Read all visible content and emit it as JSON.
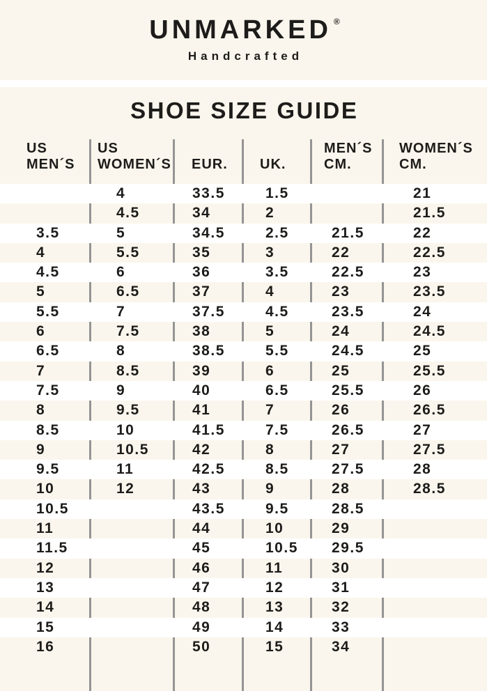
{
  "brand": {
    "name": "UNMARKED",
    "registered_mark": "®",
    "tagline": "Handcrafted"
  },
  "page_title": "SHOE SIZE GUIDE",
  "table": {
    "column_ids": [
      "us-mens",
      "us-womens",
      "eur",
      "uk",
      "mens-cm",
      "womens-cm"
    ],
    "headers": [
      {
        "line1": "US",
        "line2": "MEN´S"
      },
      {
        "line1": "US",
        "line2": "WOMEN´S"
      },
      {
        "line1": "",
        "line2": "EUR."
      },
      {
        "line1": "",
        "line2": "UK."
      },
      {
        "line1": "MEN´S",
        "line2": "CM."
      },
      {
        "line1": "WOMEN´S",
        "line2": "CM."
      }
    ],
    "rows": [
      [
        "",
        "4",
        "33.5",
        "1.5",
        "",
        "21"
      ],
      [
        "",
        "4.5",
        "34",
        "2",
        "",
        "21.5"
      ],
      [
        "3.5",
        "5",
        "34.5",
        "2.5",
        "21.5",
        "22"
      ],
      [
        "4",
        "5.5",
        "35",
        "3",
        "22",
        "22.5"
      ],
      [
        "4.5",
        "6",
        "36",
        "3.5",
        "22.5",
        "23"
      ],
      [
        "5",
        "6.5",
        "37",
        "4",
        "23",
        "23.5"
      ],
      [
        "5.5",
        "7",
        "37.5",
        "4.5",
        "23.5",
        "24"
      ],
      [
        "6",
        "7.5",
        "38",
        "5",
        "24",
        "24.5"
      ],
      [
        "6.5",
        "8",
        "38.5",
        "5.5",
        "24.5",
        "25"
      ],
      [
        "7",
        "8.5",
        "39",
        "6",
        "25",
        "25.5"
      ],
      [
        "7.5",
        "9",
        "40",
        "6.5",
        "25.5",
        "26"
      ],
      [
        "8",
        "9.5",
        "41",
        "7",
        "26",
        "26.5"
      ],
      [
        "8.5",
        "10",
        "41.5",
        "7.5",
        "26.5",
        "27"
      ],
      [
        "9",
        "10.5",
        "42",
        "8",
        "27",
        "27.5"
      ],
      [
        "9.5",
        "11",
        "42.5",
        "8.5",
        "27.5",
        "28"
      ],
      [
        "10",
        "12",
        "43",
        "9",
        "28",
        "28.5"
      ],
      [
        "10.5",
        "",
        "43.5",
        "9.5",
        "28.5",
        ""
      ],
      [
        "11",
        "",
        "44",
        "10",
        "29",
        ""
      ],
      [
        "11.5",
        "",
        "45",
        "10.5",
        "29.5",
        ""
      ],
      [
        "12",
        "",
        "46",
        "11",
        "30",
        ""
      ],
      [
        "13",
        "",
        "47",
        "12",
        "31",
        ""
      ],
      [
        "14",
        "",
        "48",
        "13",
        "32",
        ""
      ],
      [
        "15",
        "",
        "49",
        "14",
        "33",
        ""
      ],
      [
        "16",
        "",
        "50",
        "15",
        "34",
        ""
      ]
    ]
  },
  "colors": {
    "page_background": "#fbf6ed",
    "stripe_white": "#ffffff",
    "divider_gray": "#949494",
    "text": "#1d1c1a"
  }
}
